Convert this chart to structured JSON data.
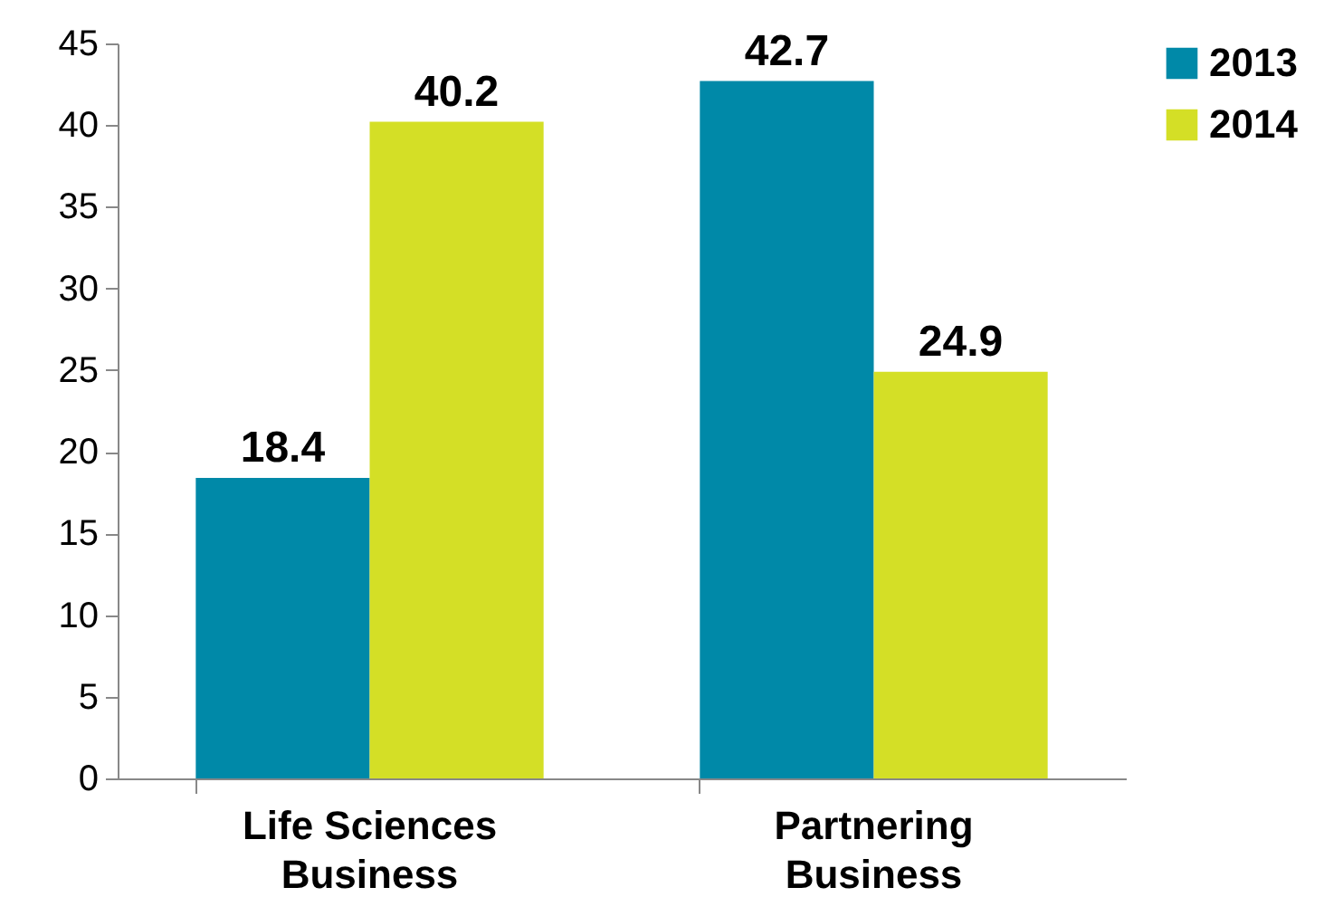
{
  "chart_data": {
    "type": "bar",
    "categories": [
      "Life Sciences Business",
      "Partnering Business"
    ],
    "series": [
      {
        "name": "2013",
        "color": "#0089a8",
        "values": [
          18.4,
          42.7
        ]
      },
      {
        "name": "2014",
        "color": "#d4df26",
        "values": [
          40.2,
          24.9
        ]
      }
    ],
    "ylim": [
      0,
      45
    ],
    "yticks": [
      0,
      5,
      10,
      15,
      20,
      25,
      30,
      35,
      40,
      45
    ],
    "data_labels": true,
    "legend": "right",
    "grid": false
  }
}
